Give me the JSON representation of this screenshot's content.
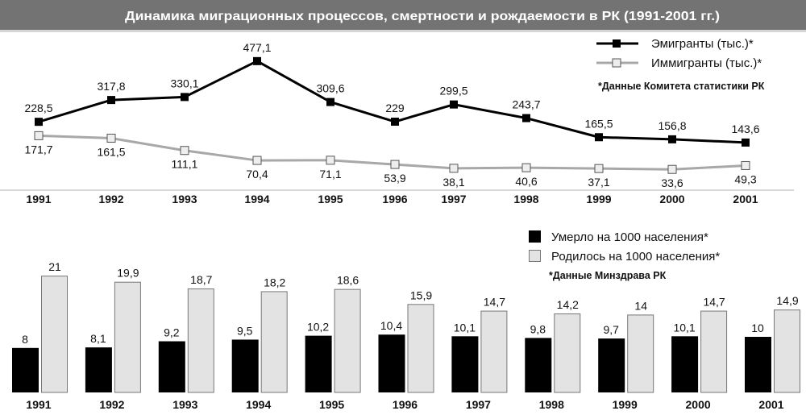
{
  "title": "Динамика миграционных процессов, смертности и рождаемости в РК (1991-2001 гг.)",
  "colors": {
    "title_bar": "#737373",
    "emigrants": "#000000",
    "immigrants": "#a8a8a8",
    "deaths": "#000000",
    "births": "#e3e3e3"
  },
  "chart_data": [
    {
      "type": "line",
      "categories": [
        "1991",
        "1992",
        "1993",
        "1994",
        "1995",
        "1996",
        "1997",
        "1998",
        "1999",
        "2000",
        "2001"
      ],
      "series": [
        {
          "name": "Эмигранты (тыс.)*",
          "values": [
            228.5,
            317.8,
            330.1,
            477.1,
            309.6,
            229,
            299.5,
            243.7,
            165.5,
            156.8,
            143.6
          ],
          "labels": [
            "228,5",
            "317,8",
            "330,1",
            "477,1",
            "309,6",
            "229",
            "299,5",
            "243,7",
            "165,5",
            "156,8",
            "143,6"
          ]
        },
        {
          "name": "Иммигранты (тыс.)*",
          "values": [
            171.7,
            161.5,
            111.1,
            70.4,
            71.1,
            53.9,
            38.1,
            40.6,
            37.1,
            33.6,
            49.3
          ],
          "labels": [
            "171,7",
            "161,5",
            "111,1",
            "70,4",
            "71,1",
            "53,9",
            "38,1",
            "40,6",
            "37,1",
            "33,6",
            "49,3"
          ]
        }
      ],
      "note": "*Данные Комитета статистики РК",
      "legend": "top-right",
      "grid": false
    },
    {
      "type": "bar",
      "categories": [
        "1991",
        "1992",
        "1993",
        "1994",
        "1995",
        "1996",
        "1997",
        "1998",
        "1999",
        "2000",
        "2001"
      ],
      "series": [
        {
          "name": "Умерло на 1000 населения*",
          "values": [
            8,
            8.1,
            9.2,
            9.5,
            10.2,
            10.4,
            10.1,
            9.8,
            9.7,
            10.1,
            10
          ],
          "labels": [
            "8",
            "8,1",
            "9,2",
            "9,5",
            "10,2",
            "10,4",
            "10,1",
            "9,8",
            "9,7",
            "10,1",
            "10"
          ]
        },
        {
          "name": "Родилось на 1000 населения*",
          "values": [
            21,
            19.9,
            18.7,
            18.2,
            18.6,
            15.9,
            14.7,
            14.2,
            14,
            14.7,
            14.9
          ],
          "labels": [
            "21",
            "19,9",
            "18,7",
            "18,2",
            "18,6",
            "15,9",
            "14,7",
            "14,2",
            "14",
            "14,7",
            "14,9"
          ]
        }
      ],
      "note": "*Данные Минздрава РК",
      "legend": "top-right",
      "grid": false
    }
  ]
}
